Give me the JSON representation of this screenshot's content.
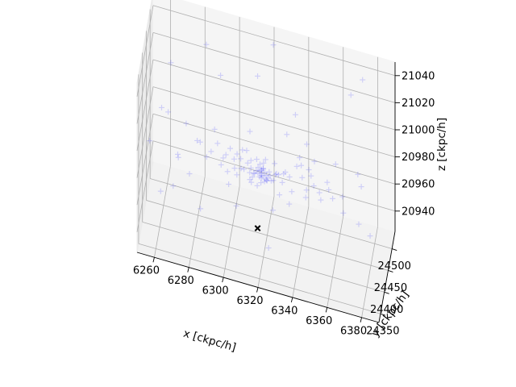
{
  "chart_data": {
    "type": "scatter",
    "projection": "3d",
    "title": "",
    "grid": true,
    "axes": {
      "x": {
        "label": "x [ckpc/h]",
        "ticks": [
          6260,
          6280,
          6300,
          6320,
          6340,
          6360,
          6380
        ],
        "tick_labels": [
          "6260",
          "6280",
          "6300",
          "6320",
          "6340",
          "6360",
          "6380"
        ],
        "range": [
          6250,
          6390
        ]
      },
      "y": {
        "label": "y [ckpc/h]",
        "ticks": [
          24350,
          24400,
          24450,
          24500
        ],
        "tick_labels": [
          "24350",
          "24400",
          "24450",
          "24500"
        ],
        "range": [
          24330,
          24540
        ]
      },
      "z": {
        "label": "z [ckpc/h]",
        "ticks": [
          20940,
          20960,
          20980,
          21000,
          21020,
          21040
        ],
        "tick_labels": [
          "20940",
          "20960",
          "20980",
          "21000",
          "21020",
          "21040"
        ],
        "range": [
          20925,
          21050
        ]
      }
    },
    "series": [
      {
        "marker": "+",
        "color": "#0000ff",
        "alpha": 0.15,
        "points": [
          [
            6318,
            24418,
            20980
          ],
          [
            6317,
            24420,
            20981
          ],
          [
            6319,
            24417,
            20979
          ],
          [
            6318,
            24419,
            20982
          ],
          [
            6316,
            24418,
            20980
          ],
          [
            6320,
            24420,
            20981
          ],
          [
            6317,
            24416,
            20978
          ],
          [
            6319,
            24421,
            20983
          ],
          [
            6318,
            24417,
            20979
          ],
          [
            6321,
            24418,
            20980
          ],
          [
            6315,
            24419,
            20981
          ],
          [
            6318,
            24422,
            20982
          ],
          [
            6322,
            24416,
            20979
          ],
          [
            6314,
            24420,
            20978
          ],
          [
            6318,
            24418,
            20977
          ],
          [
            6319,
            24419,
            20984
          ],
          [
            6316,
            24421,
            20983
          ],
          [
            6320,
            24415,
            20976
          ],
          [
            6317,
            24423,
            20985
          ],
          [
            6323,
            24419,
            20980
          ],
          [
            6312,
            24418,
            20982
          ],
          [
            6325,
            24417,
            20978
          ],
          [
            6318,
            24413,
            20975
          ],
          [
            6319,
            24425,
            20986
          ],
          [
            6310,
            24421,
            20984
          ],
          [
            6326,
            24422,
            20981
          ],
          [
            6313,
            24414,
            20977
          ],
          [
            6324,
            24412,
            20979
          ],
          [
            6315,
            24426,
            20987
          ],
          [
            6321,
            24424,
            20974
          ],
          [
            6308,
            24417,
            20980
          ],
          [
            6328,
            24418,
            20983
          ],
          [
            6316,
            24410,
            20973
          ],
          [
            6320,
            24428,
            20988
          ],
          [
            6311,
            24425,
            20976
          ],
          [
            6327,
            24413,
            20985
          ],
          [
            6306,
            24420,
            20986
          ],
          [
            6330,
            24421,
            20977
          ],
          [
            6314,
            24408,
            20982
          ],
          [
            6322,
            24430,
            20979
          ],
          [
            6304,
            24415,
            20975
          ],
          [
            6332,
            24416,
            20987
          ],
          [
            6309,
            24430,
            20990
          ],
          [
            6329,
            24407,
            20972
          ],
          [
            6302,
            24424,
            20983
          ],
          [
            6334,
            24426,
            20981
          ],
          [
            6312,
            24404,
            20978
          ],
          [
            6325,
            24434,
            20985
          ],
          [
            6300,
            24418,
            20992
          ],
          [
            6336,
            24410,
            20976
          ],
          [
            6298,
            24428,
            20971
          ],
          [
            6338,
            24430,
            20989
          ],
          [
            6307,
            24402,
            20985
          ],
          [
            6330,
            24438,
            20978
          ],
          [
            6295,
            24412,
            20980
          ],
          [
            6341,
            24420,
            20994
          ],
          [
            6303,
            24440,
            20982
          ],
          [
            6335,
            24399,
            20970
          ],
          [
            6292,
            24433,
            20988
          ],
          [
            6344,
            24412,
            20974
          ],
          [
            6313,
            24396,
            20995
          ],
          [
            6320,
            24443,
            20968
          ],
          [
            6289,
            24417,
            20986
          ],
          [
            6346,
            24436,
            20983
          ],
          [
            6300,
            24398,
            20972
          ],
          [
            6339,
            24445,
            20991
          ],
          [
            6286,
            24426,
            20978
          ],
          [
            6349,
            24404,
            20987
          ],
          [
            6310,
            24450,
            20998
          ],
          [
            6326,
            24390,
            20965
          ],
          [
            6283,
            24410,
            20993
          ],
          [
            6352,
            24428,
            20970
          ],
          [
            6296,
            24452,
            20975
          ],
          [
            6343,
            24388,
            20996
          ],
          [
            6280,
            24438,
            20984
          ],
          [
            6355,
            24444,
            20979
          ],
          [
            6305,
            24385,
            20962
          ],
          [
            6331,
            24458,
            21001
          ],
          [
            6277,
            24405,
            20969
          ],
          [
            6358,
            24396,
            20990
          ],
          [
            6289,
            24462,
            20988
          ],
          [
            6350,
            24455,
            20966
          ],
          [
            6274,
            24430,
            20997
          ],
          [
            6361,
            24418,
            21003
          ],
          [
            6314,
            24378,
            20985
          ],
          [
            6318,
            24468,
            20960
          ],
          [
            6271,
            24395,
            20982
          ],
          [
            6364,
            24440,
            20973
          ],
          [
            6298,
            24372,
            20999
          ],
          [
            6342,
            24470,
            20994
          ],
          [
            6268,
            24455,
            20964
          ],
          [
            6367,
            24384,
            20980
          ],
          [
            6335,
            24480,
            21010
          ],
          [
            6285,
            24368,
            20958
          ],
          [
            6372,
            24460,
            20986
          ],
          [
            6264,
            24420,
            21005
          ],
          [
            6304,
            24488,
            20970
          ],
          [
            6348,
            24362,
            21012
          ],
          [
            6261,
            24390,
            20955
          ],
          [
            6375,
            24405,
            20968
          ],
          [
            6291,
            24495,
            21018
          ],
          [
            6356,
            24492,
            20952
          ],
          [
            6258,
            24470,
            20990
          ],
          [
            6378,
            24370,
            21008
          ],
          [
            6325,
            24355,
            20948
          ],
          [
            6312,
            24505,
            21022
          ],
          [
            6366,
            24505,
            21028
          ],
          [
            6270,
            24350,
            20975
          ],
          [
            6340,
            24512,
            20946
          ],
          [
            6282,
            24512,
            21032
          ],
          [
            6380,
            24440,
            20950
          ],
          [
            6262,
            24500,
            21015
          ],
          [
            6352,
            24345,
            21025
          ],
          [
            6298,
            24520,
            20944
          ],
          [
            6372,
            24522,
            21036
          ],
          [
            6256,
            24360,
            21000
          ],
          [
            6320,
            24530,
            21040
          ]
        ]
      },
      {
        "marker": "x",
        "color": "#000000",
        "alpha": 1.0,
        "points": [
          [
            6316,
            24415,
            20940
          ]
        ]
      }
    ]
  }
}
